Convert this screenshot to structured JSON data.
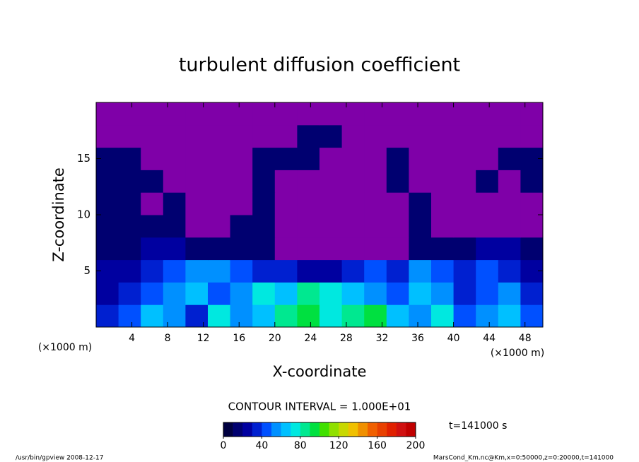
{
  "chart_data": {
    "type": "contour",
    "title": "turbulent diffusion coefficient",
    "x_label": "X-coordinate",
    "y_label": "Z-coordinate",
    "x_unit": "(×1000 m)",
    "y_unit": "(×1000 m)",
    "xlim": [
      0,
      50
    ],
    "xticks": [
      4,
      8,
      12,
      16,
      20,
      24,
      28,
      32,
      36,
      40,
      44,
      48
    ],
    "ylim": [
      0,
      20
    ],
    "yticks": [
      5,
      10,
      15
    ],
    "values": [
      [
        30,
        40,
        60,
        50,
        30,
        70,
        50,
        60,
        80,
        90,
        70,
        80,
        90,
        60,
        50,
        70,
        40,
        50,
        60,
        40
      ],
      [
        20,
        30,
        40,
        50,
        60,
        40,
        50,
        70,
        60,
        80,
        70,
        60,
        50,
        40,
        60,
        50,
        30,
        40,
        50,
        30
      ],
      [
        20,
        20,
        30,
        40,
        50,
        50,
        40,
        30,
        30,
        20,
        20,
        30,
        40,
        30,
        50,
        40,
        30,
        40,
        30,
        20
      ],
      [
        10,
        10,
        20,
        20,
        10,
        10,
        10,
        10,
        0,
        0,
        0,
        0,
        0,
        0,
        10,
        10,
        10,
        20,
        20,
        10
      ],
      [
        10,
        10,
        10,
        10,
        0,
        0,
        10,
        10,
        0,
        0,
        0,
        0,
        0,
        0,
        10,
        0,
        0,
        0,
        0,
        0
      ],
      [
        10,
        10,
        0,
        10,
        0,
        0,
        0,
        10,
        0,
        0,
        0,
        0,
        0,
        0,
        10,
        0,
        0,
        0,
        0,
        0
      ],
      [
        10,
        10,
        10,
        0,
        0,
        0,
        0,
        10,
        0,
        0,
        0,
        0,
        0,
        10,
        0,
        0,
        0,
        10,
        0,
        10
      ],
      [
        10,
        10,
        0,
        0,
        0,
        0,
        0,
        10,
        10,
        10,
        0,
        0,
        0,
        10,
        0,
        0,
        0,
        0,
        10,
        10
      ],
      [
        0,
        0,
        0,
        0,
        0,
        0,
        0,
        0,
        0,
        10,
        10,
        0,
        0,
        0,
        0,
        0,
        0,
        0,
        0,
        0
      ],
      [
        0,
        0,
        0,
        0,
        0,
        0,
        0,
        0,
        0,
        0,
        0,
        0,
        0,
        0,
        0,
        0,
        0,
        0,
        0,
        0
      ]
    ],
    "contour_interval": 10,
    "zero_color": "#7f00a8",
    "colormap": [
      "#000040",
      "#000070",
      "#0000a0",
      "#0020d0",
      "#0050ff",
      "#0090ff",
      "#00c0ff",
      "#00e8e0",
      "#00e890",
      "#00e040",
      "#40e000",
      "#90e000",
      "#c8d800",
      "#f0c000",
      "#f09000",
      "#f06000",
      "#e84000",
      "#e02000",
      "#d01010",
      "#c00000"
    ],
    "colorbar_lim": [
      0,
      200
    ],
    "colorbar_ticks": [
      0,
      40,
      80,
      120,
      160,
      200
    ],
    "interval_text": "CONTOUR INTERVAL = 1.000E+01",
    "time_text": "t=141000 s",
    "footer_left": "/usr/bin/gpview   2008-12-17",
    "footer_right": "MarsCond_Km.nc@Km,x=0:50000,z=0:20000,t=141000"
  }
}
